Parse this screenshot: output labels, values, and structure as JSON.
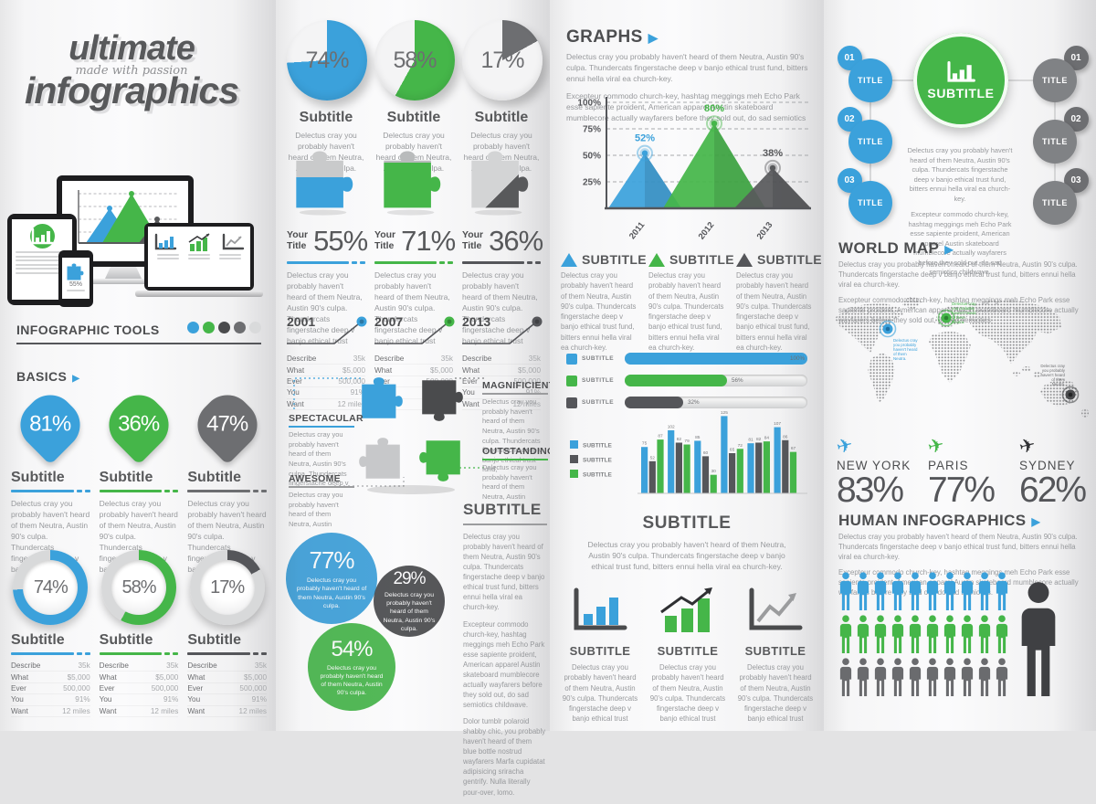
{
  "brand": {
    "line1": "ultimate",
    "tagline": "made with passion",
    "line2": "infographics"
  },
  "palette": {
    "blue": "#3ba1db",
    "green": "#45b649",
    "dark": "#55565a",
    "gray": "#808285",
    "light": "#d8d9da",
    "big_person": "#3f4043"
  },
  "tools": {
    "heading": "INFOGRAPHIC TOOLS",
    "dots": [
      "#3ba1db",
      "#45b649",
      "#4a4b4d",
      "#6d6e71",
      "#d9dadb"
    ]
  },
  "device_mockup": {
    "phone_value": "55%",
    "tablet_icon": "bar-chart",
    "monitor_chart": "triangle-chart",
    "laptop_charts": [
      "bar",
      "growth",
      "line"
    ]
  },
  "basics": {
    "heading": "BASICS",
    "kites": [
      {
        "value": "81%",
        "color": "#3ba1db",
        "subtitle": "Subtitle",
        "text": "Delectus cray you probably haven't heard of them Neutra, Austin 90's culpa. Thundercats fingerstache deep v banjo ethical trust."
      },
      {
        "value": "36%",
        "color": "#45b649",
        "subtitle": "Subtitle",
        "text": "Delectus cray you probably haven't heard of them Neutra, Austin 90's culpa. Thundercats fingerstache deep v banjo ethical trust."
      },
      {
        "value": "47%",
        "color": "#6d6e71",
        "subtitle": "Subtitle",
        "text": "Delectus cray you probably haven't heard of them Neutra, Austin 90's culpa. Thundercats fingerstache deep v banjo ethical trust."
      }
    ],
    "donuts": [
      {
        "value": "74%",
        "pct": 74,
        "color": "#3ba1db",
        "subtitle": "Subtitle"
      },
      {
        "value": "58%",
        "pct": 58,
        "color": "#45b649",
        "subtitle": "Subtitle"
      },
      {
        "value": "17%",
        "pct": 17,
        "color": "#55565a",
        "subtitle": "Subtitle"
      }
    ],
    "stats": [
      [
        "Describe",
        "35k"
      ],
      [
        "What",
        "$5,000"
      ],
      [
        "Ever",
        "500,000"
      ],
      [
        "You",
        "91%"
      ],
      [
        "Want",
        "12 miles"
      ]
    ]
  },
  "col2": {
    "pies": [
      {
        "value": "74%",
        "pct": 74,
        "color": "#3ba1db",
        "subtitle": "Subtitle",
        "text": "Delectus cray you probably haven't heard of them Neutra, Austin 90's culpa."
      },
      {
        "value": "58%",
        "pct": 58,
        "color": "#45b649",
        "subtitle": "Subtitle",
        "text": "Delectus cray you probably haven't heard of them Neutra, Austin 90's culpa."
      },
      {
        "value": "17%",
        "pct": 17,
        "color": "#6d6e71",
        "subtitle": "Subtitle",
        "text": "Delectus cray you probably haven't heard of them Neutra, Austin 90's culpa."
      }
    ],
    "puzzle_pieces": [
      {
        "top_color": "#c9cacb",
        "main_color": "#3ba1db",
        "split": 46
      },
      {
        "top_color": "#b9bbbc",
        "main_color": "#45b649",
        "split": 20
      },
      {
        "top_color": "#d3d4d5",
        "main_color": "#58595b",
        "split": 62
      }
    ],
    "your_titles": [
      {
        "label": "Your Title",
        "value": "55%",
        "color": "#3ba1db",
        "text": "Delectus cray you probably haven't heard of them Neutra, Austin 90's culpa. Thundercats fingerstache deep v banjo ethical trust"
      },
      {
        "label": "Your Title",
        "value": "71%",
        "color": "#45b649",
        "text": "Delectus cray you probably haven't heard of them Neutra, Austin 90's culpa. Thundercats fingerstache deep v banjo ethical trust"
      },
      {
        "label": "Your Title",
        "value": "36%",
        "color": "#55565a",
        "text": "Delectus cray you probably haven't heard of them Neutra, Austin 90's culpa. Thundercats fingerstache deep v banjo ethical trust"
      }
    ],
    "milestones": [
      {
        "year": "2001",
        "color": "#3ba1db"
      },
      {
        "year": "2007",
        "color": "#45b649"
      },
      {
        "year": "2013",
        "color": "#55565a"
      }
    ],
    "callouts": [
      {
        "id": "spectacular",
        "label": "SPECTACULAR",
        "color": "#3ba1db",
        "text": "Delectus cray you probably haven't heard of them Neutra, Austin 90's culpa. Thundercats fingerstache deep v"
      },
      {
        "id": "magnificient",
        "label": "MAGNIFICIENT",
        "color": "#9b9c9e",
        "text": "Delectus cray you probably haven't heard of them Neutra, Austin 90's culpa. Thundercats fingerstache deep v banjo ethical trust fund,"
      },
      {
        "id": "awesome",
        "label": "AWESOME",
        "color": "#9b9c9e",
        "text": "Delectus cray you probably haven't heard of them Neutra, Austin"
      },
      {
        "id": "outstanding",
        "label": "OUTSTANDING",
        "color": "#45b649",
        "text": "Delectus cray you probably haven't heard of them Neutra, Austin"
      }
    ],
    "venn": [
      {
        "value": "77%",
        "color": "#3ba1db",
        "text": "Delectus cray you probably haven't heard of them Neutra, Austin 90's culpa."
      },
      {
        "value": "29%",
        "color": "#4a4b4d",
        "text": "Delectus cray you probably haven't heard of them Neutra, Austin 90's culpa."
      },
      {
        "value": "54%",
        "color": "#45b649",
        "text": "Delectus cray you probably haven't heard of them Neutra, Austin 90's culpa."
      }
    ],
    "subtitle_block": {
      "heading": "SUBTITLE",
      "paras": [
        "Delectus cray you probably haven't heard of them Neutra, Austin 90's culpa. Thundercats fingerstache deep v banjo ethical trust fund, bitters ennui hella viral ea church-key.",
        "Excepteur commodo church-key, hashtag meggings meh Echo Park esse sapiente proident, American apparel Austin skateboard mumblecore actually wayfarers before they sold out, do sad semiotics childwave.",
        "Dolor tumblr polaroid shabby chic, you probably haven't heard of them blue bottle nostrud wayfarers Marfa cupidatat adipisicing sriracha gentrify. Nulla literally pour-over, lomo."
      ]
    }
  },
  "graphs": {
    "heading": "GRAPHS",
    "intro": [
      "Delectus cray you probably haven't heard of them Neutra, Austin 90's culpa. Thundercats fingerstache deep v banjo ethical trust fund, bitters ennui hella viral ea church-key.",
      "Excepteur commodo church-key, hashtag meggings meh Echo Park esse sapiente proident, American apparel Austin skateboard mumblecore actually wayfarers before they sold out, do sad semiotics"
    ],
    "triangle_legend": [
      {
        "color": "#3ba1db",
        "label": "SUBTITLE",
        "text": "Delectus cray you probably haven't heard of them Neutra, Austin 90's culpa. Thundercats fingerstache deep v banjo ethical trust fund, bitters ennui hella viral ea church-key."
      },
      {
        "color": "#45b649",
        "label": "SUBTITLE",
        "text": "Delectus cray you probably haven't heard of them Neutra, Austin 90's culpa. Thundercats fingerstache deep v banjo ethical trust fund, bitters ennui hella viral ea church-key."
      },
      {
        "color": "#55565a",
        "label": "SUBTITLE",
        "text": "Delectus cray you probably haven't heard of them Neutra, Austin 90's culpa. Thundercats fingerstache deep v banjo ethical trust fund, bitters ennui hella viral ea church-key."
      }
    ],
    "subtitle_block": {
      "heading": "SUBTITLE",
      "text": "Delectus cray you probably haven't heard of them Neutra, Austin 90's culpa. Thundercats fingerstache deep v banjo ethical trust fund, bitters ennui hella viral ea church-key."
    },
    "mini_charts": [
      {
        "type": "bars-blue",
        "label": "SUBTITLE",
        "text": "Delectus cray you probably haven't heard of them Neutra, Austin 90's culpa. Thundercats fingerstache deep v banjo ethical trust"
      },
      {
        "type": "bars-green-arrow",
        "label": "SUBTITLE",
        "text": "Delectus cray you probably haven't heard of them Neutra, Austin 90's culpa. Thundercats fingerstache deep v banjo ethical trust"
      },
      {
        "type": "line-gray",
        "label": "SUBTITLE",
        "text": "Delectus cray you probably haven't heard of them Neutra, Austin 90's culpa. Thundercats fingerstache deep v banjo ethical trust"
      }
    ]
  },
  "flow": {
    "left": [
      {
        "badge": "01",
        "label": "TITLE"
      },
      {
        "badge": "02",
        "label": "TITLE"
      },
      {
        "badge": "03",
        "label": "TITLE"
      }
    ],
    "right": [
      {
        "badge": "01",
        "label": "TITLE"
      },
      {
        "badge": "02",
        "label": "TITLE"
      },
      {
        "badge": "03",
        "label": "TITLE"
      }
    ],
    "hub": {
      "label": "SUBTITLE",
      "color": "#45b649",
      "icon": "bar-chart"
    },
    "paras": [
      "Delectus cray you probably haven't heard of them Neutra, Austin 90's culpa. Thundercats fingerstache deep v banjo ethical trust fund, bitters ennui hella viral ea church-key.",
      "Excepteur commodo church-key, hashtag meggings meh Echo Park esse sapiente proident, American apparel Austin skateboard mumblecore actually wayfarers before they sold out, do sad semiotics childwave."
    ]
  },
  "worldmap": {
    "heading": "WORLD MAP",
    "paras": [
      "Delectus cray you probably haven't heard of them Neutra, Austin 90's culpa. Thundercats fingerstache deep v banjo ethical trust fund, bitters ennui hella viral ea church-key.",
      "Excepteur commodo church-key, hashtag meggings meh Echo Park esse sapiente proident, American apparel Austin skateboard mumblecore actually wayfarers before they sold out, do sad semiotics"
    ],
    "marker_caption": "Delectus cray you probably haven't heard of them Neutra.",
    "cities": [
      {
        "name": "NEW YORK",
        "value": "83%",
        "color": "#3ba1db"
      },
      {
        "name": "PARIS",
        "value": "77%",
        "color": "#45b649"
      },
      {
        "name": "SYDNEY",
        "value": "62%",
        "color": "#2f3033"
      }
    ]
  },
  "human": {
    "heading": "HUMAN INFOGRAPHICS",
    "paras": [
      "Delectus cray you probably haven't heard of them Neutra, Austin 90's culpa. Thundercats fingerstache deep v banjo ethical trust fund, bitters ennui hella viral ea church-key.",
      "Excepteur commodo church-key, hashtag meggings meh Echo Park esse sapiente proident, American apparel Austin skateboard mumblecore actually wayfarers before they sold out, do sad semiotics."
    ],
    "rows": [
      {
        "color": "#3ba1db",
        "count": 10
      },
      {
        "color": "#45b649",
        "count": 10
      },
      {
        "color": "#6a6b6e",
        "count": 10
      }
    ]
  },
  "chart_data": [
    {
      "type": "area",
      "name": "triangle-peaks-chart",
      "categories": [
        "2011",
        "2012",
        "2013"
      ],
      "values": [
        52,
        80,
        38
      ],
      "value_labels": [
        "52%",
        "80%",
        "38%"
      ],
      "colors": [
        "#3ba1db",
        "#45b649",
        "#55565a"
      ],
      "ylim": [
        0,
        100
      ],
      "yticks": [
        "25%",
        "50%",
        "75%",
        "100%"
      ],
      "grid": true,
      "legend_position": "below"
    },
    {
      "type": "bar",
      "name": "horizontal-progress-bars",
      "orientation": "horizontal",
      "categories": [
        "SUBTITLE",
        "SUBTITLE",
        "SUBTITLE"
      ],
      "values": [
        100,
        56,
        32
      ],
      "value_labels": [
        "100%",
        "56%",
        "32%"
      ],
      "colors": [
        "#3ba1db",
        "#45b649",
        "#55565a"
      ]
    },
    {
      "type": "bar",
      "name": "grouped-vertical-bars",
      "values": [
        75,
        52,
        87,
        102,
        82,
        79,
        85,
        60,
        30,
        125,
        65,
        72,
        81,
        82,
        84,
        107,
        86,
        67
      ],
      "color_cycle": [
        "#3ba1db",
        "#55565a",
        "#45b649"
      ],
      "legend": [
        "SUBTITLE",
        "SUBTITLE",
        "SUBTITLE"
      ],
      "ylim": [
        0,
        130
      ]
    },
    {
      "type": "pie",
      "name": "pie-trio",
      "values": [
        74,
        58,
        17
      ],
      "labels": [
        "74%",
        "58%",
        "17%"
      ],
      "colors": [
        "#3ba1db",
        "#45b649",
        "#6d6e71"
      ]
    },
    {
      "type": "pie",
      "name": "donut-trio",
      "values": [
        74,
        58,
        17
      ],
      "labels": [
        "74%",
        "58%",
        "17%"
      ],
      "colors": [
        "#3ba1db",
        "#45b649",
        "#55565a"
      ]
    },
    {
      "type": "pie",
      "name": "kite-trio",
      "values": [
        81,
        36,
        47
      ],
      "labels": [
        "81%",
        "36%",
        "47%"
      ],
      "colors": [
        "#3ba1db",
        "#45b649",
        "#6d6e71"
      ]
    },
    {
      "type": "pie",
      "name": "venn-circles",
      "values": [
        77,
        29,
        54
      ],
      "labels": [
        "77%",
        "29%",
        "54%"
      ],
      "colors": [
        "#3ba1db",
        "#4a4b4d",
        "#45b649"
      ]
    },
    {
      "type": "table",
      "name": "stats-table",
      "rows": [
        [
          "Describe",
          "35k"
        ],
        [
          "What",
          "$5,000"
        ],
        [
          "Ever",
          "500,000"
        ],
        [
          "You",
          "91%"
        ],
        [
          "Want",
          "12 miles"
        ]
      ]
    },
    {
      "type": "bar",
      "name": "city-percentages",
      "categories": [
        "NEW YORK",
        "PARIS",
        "SYDNEY"
      ],
      "values": [
        83,
        77,
        62
      ],
      "value_labels": [
        "83%",
        "77%",
        "62%"
      ]
    },
    {
      "type": "heatmap",
      "name": "people-pictogram",
      "rows": [
        [
          "blue",
          10
        ],
        [
          "green",
          10
        ],
        [
          "gray",
          10
        ]
      ]
    }
  ]
}
